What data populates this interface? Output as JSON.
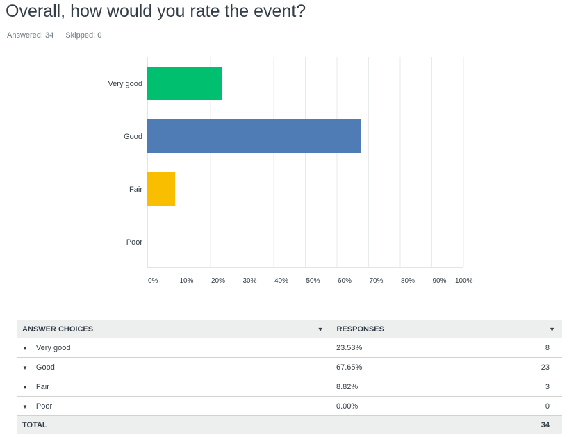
{
  "header": {
    "title": "Overall, how would you rate the event?",
    "answered": "Answered: 34",
    "skipped": "Skipped: 0"
  },
  "chart_data": {
    "type": "bar",
    "orientation": "horizontal",
    "categories": [
      "Very good",
      "Good",
      "Fair",
      "Poor"
    ],
    "values": [
      23.53,
      67.65,
      8.82,
      0
    ],
    "colors": [
      "#00bf6f",
      "#507cb6",
      "#f9be00",
      "#6bc8cd"
    ],
    "xlim": [
      0,
      100
    ],
    "xticks": [
      "0%",
      "10%",
      "20%",
      "30%",
      "40%",
      "50%",
      "60%",
      "70%",
      "80%",
      "90%",
      "100%"
    ],
    "grid": true
  },
  "table": {
    "headers": {
      "choices": "ANSWER CHOICES",
      "responses": "RESPONSES"
    },
    "rows": [
      {
        "label": "Very good",
        "pct": "23.53%",
        "count": "8"
      },
      {
        "label": "Good",
        "pct": "67.65%",
        "count": "23"
      },
      {
        "label": "Fair",
        "pct": "8.82%",
        "count": "3"
      },
      {
        "label": "Poor",
        "pct": "0.00%",
        "count": "0"
      }
    ],
    "total_label": "TOTAL",
    "total": "34"
  }
}
